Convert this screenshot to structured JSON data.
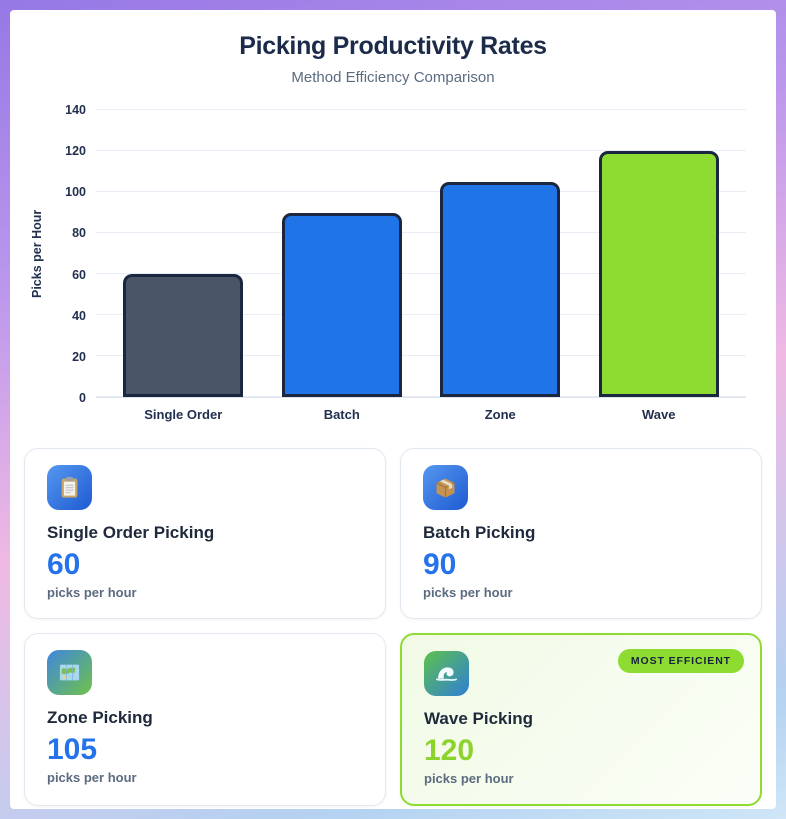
{
  "header": {
    "title": "Picking Productivity Rates",
    "subtitle": "Method Efficiency Comparison"
  },
  "chart_data": {
    "type": "bar",
    "title": "Picking Productivity Rates",
    "subtitle": "Method Efficiency Comparison",
    "categories": [
      "Single Order",
      "Batch",
      "Zone",
      "Wave"
    ],
    "values": [
      60,
      90,
      105,
      120
    ],
    "xlabel": "",
    "ylabel": "Picks per Hour",
    "ylim": [
      0,
      140
    ],
    "yticks": [
      0,
      20,
      40,
      60,
      80,
      100,
      120,
      140
    ],
    "grid": true,
    "legend": false,
    "bar_colors": [
      "#4a5568",
      "#1f74e8",
      "#1f74e8",
      "#8edc32"
    ],
    "bar_border_color": "#1b2740"
  },
  "cards": [
    {
      "title": "Single Order Picking",
      "value": "60",
      "unit": "picks per hour",
      "icon": "clipboard-icon"
    },
    {
      "title": "Batch Picking",
      "value": "90",
      "unit": "picks per hour",
      "icon": "package-icon"
    },
    {
      "title": "Zone Picking",
      "value": "105",
      "unit": "picks per hour",
      "icon": "map-icon"
    },
    {
      "title": "Wave Picking",
      "value": "120",
      "unit": "picks per hour",
      "icon": "wave-icon",
      "badge": "MOST EFFICIENT",
      "highlight": true
    }
  ],
  "colors": {
    "accent_blue": "#1f74e8",
    "accent_green": "#8edc32",
    "slate_bar": "#4a5568",
    "value_blue": "#2473ea",
    "badge_bg": "#8edc32",
    "badge_text": "#17233d",
    "title_text": "#1c2b4a",
    "subtitle_text": "#5b6b80"
  }
}
